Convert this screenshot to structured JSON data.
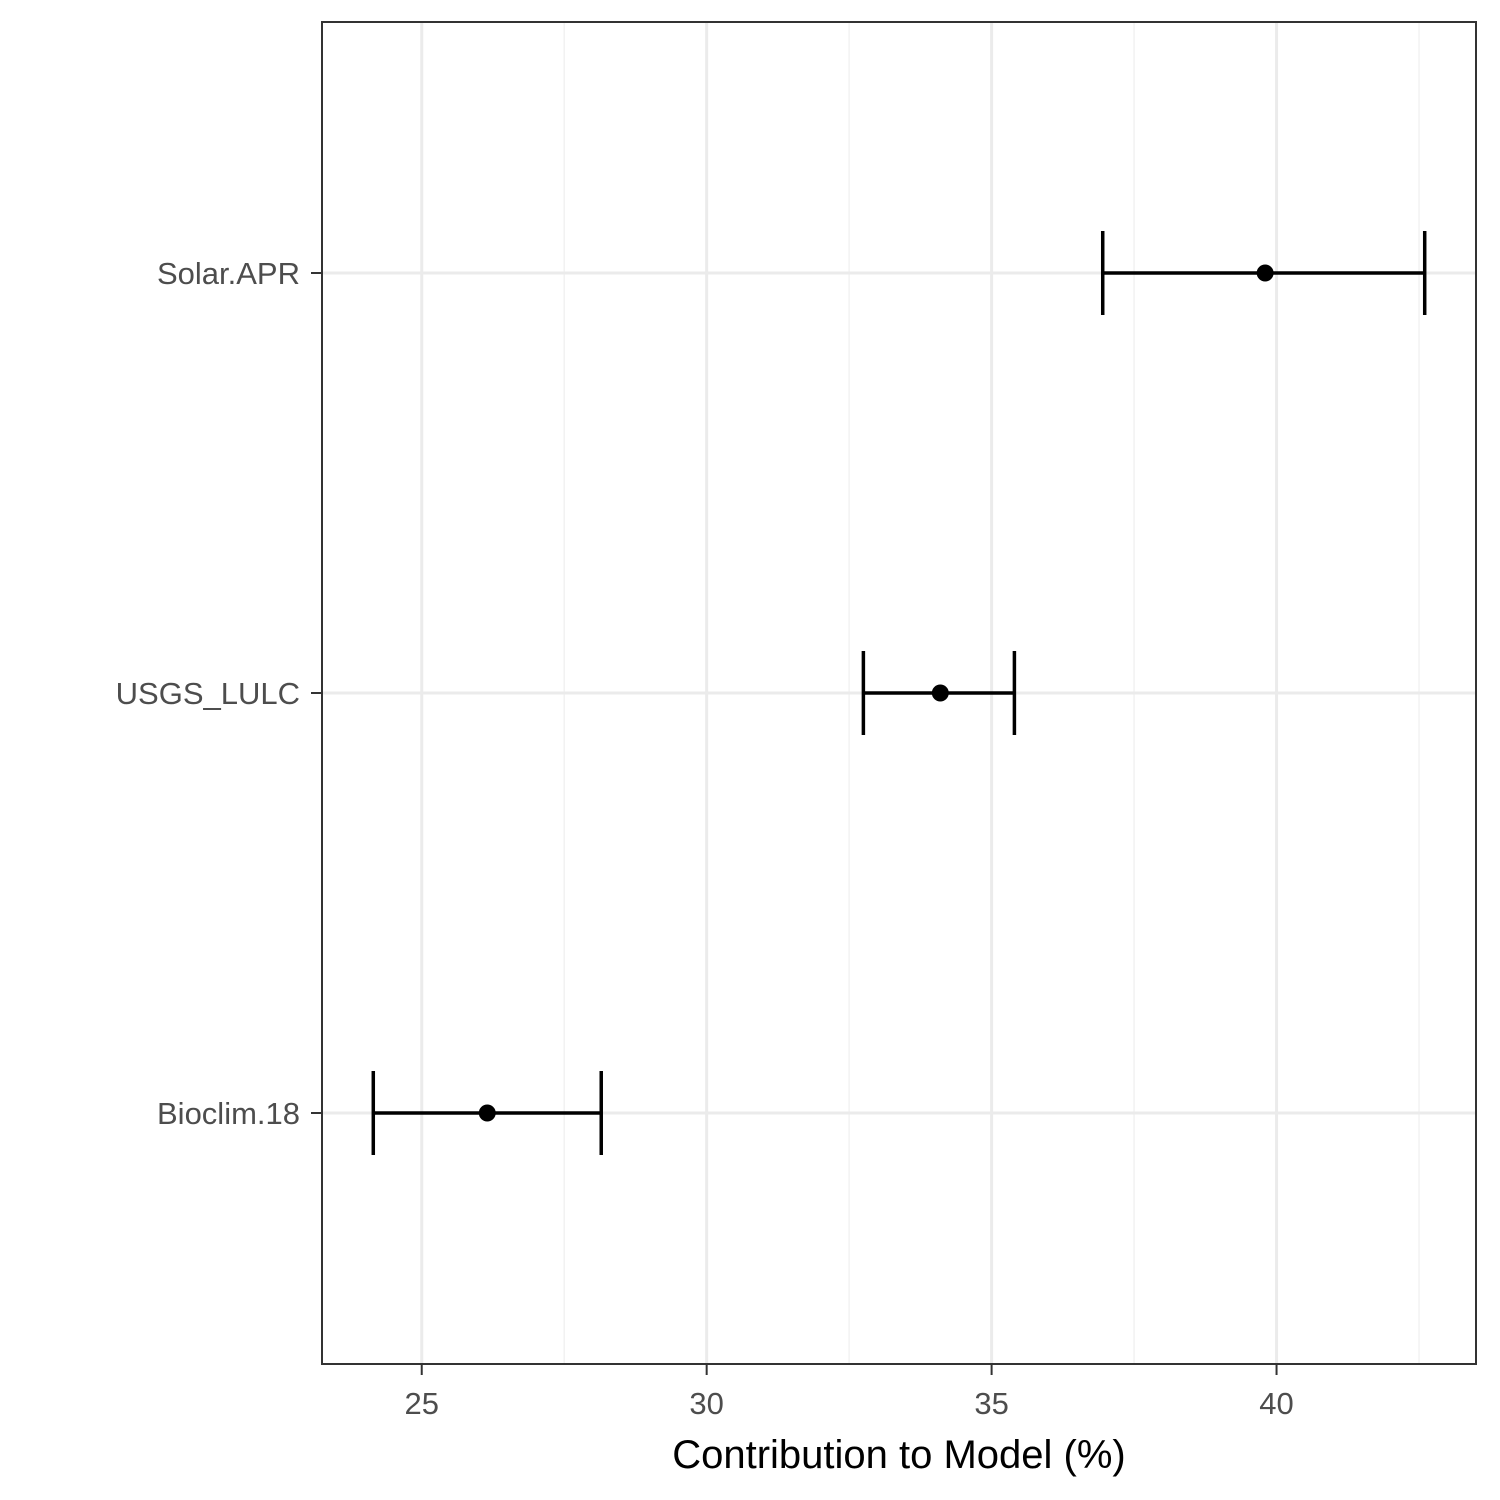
{
  "chart_data": {
    "type": "errorbar",
    "orientation": "horizontal",
    "title": "",
    "xlabel": "Contribution to Model (%)",
    "ylabel": "",
    "xlim": [
      23.25,
      43.5
    ],
    "x_ticks": [
      25,
      30,
      35,
      40
    ],
    "x_minor_ticks": [
      27.5,
      32.5,
      37.5,
      42.5
    ],
    "grid": true,
    "categories": [
      "Solar.APR",
      "USGS_LULC",
      "Bioclim.18"
    ],
    "points": [
      {
        "label": "Solar.APR",
        "mean": 39.8,
        "lower": 36.95,
        "upper": 42.6
      },
      {
        "label": "USGS_LULC",
        "mean": 34.1,
        "lower": 32.75,
        "upper": 35.4
      },
      {
        "label": "Bioclim.18",
        "mean": 26.15,
        "lower": 24.15,
        "upper": 28.15
      }
    ],
    "colors": {
      "mark": "#000000",
      "grid_major": "#ebebeb",
      "grid_minor": "#f2f2f2",
      "border": "#333333",
      "tick_text": "#4d4d4d"
    }
  }
}
